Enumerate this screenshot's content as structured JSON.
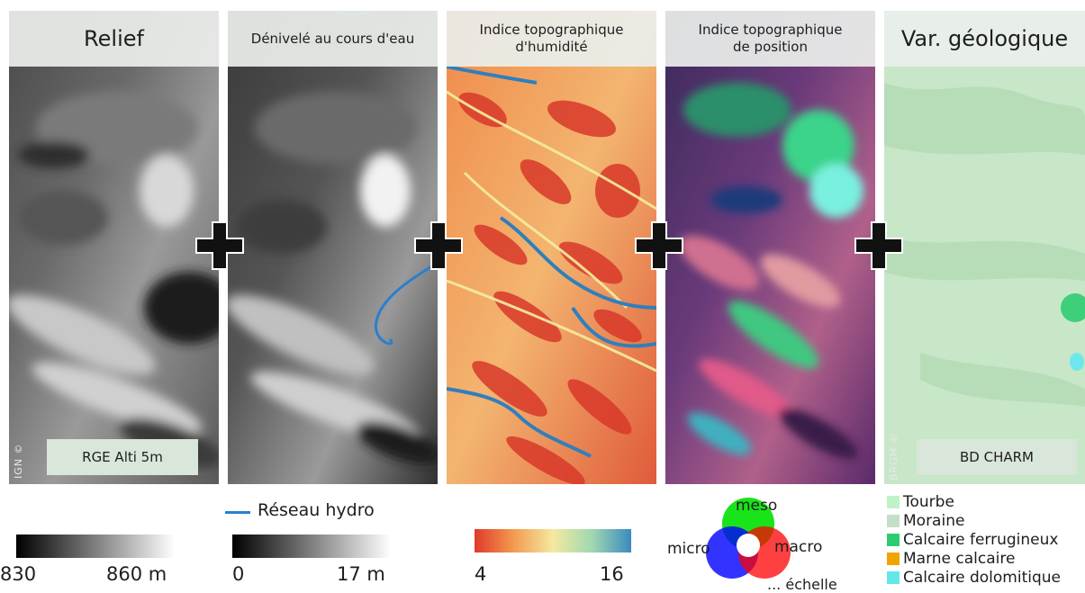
{
  "panels": [
    {
      "title": "Relief",
      "tag": "RGE Alti 5m",
      "credit": "IGN ©"
    },
    {
      "title": "Dénivelé au cours d'eau"
    },
    {
      "title_line1": "Indice topographique",
      "title_line2": "d'humidité"
    },
    {
      "title_line1": "Indice topographique",
      "title_line2": "de position"
    },
    {
      "title": "Var. géologique",
      "tag": "BD CHARM",
      "credit": "BRGM ©"
    }
  ],
  "legends": {
    "relief": {
      "min": "830",
      "max": "860 m"
    },
    "denivele": {
      "line_label": "Réseau hydro",
      "min": "0",
      "max": "17 m",
      "line_color": "#2a7fd0"
    },
    "humidite": {
      "min": "4",
      "max": "16"
    },
    "position": {
      "meso": "meso",
      "micro": "micro",
      "macro": "macro",
      "echelle": "... échelle"
    },
    "geologie": [
      {
        "label": "Tourbe",
        "color": "#bff2c6"
      },
      {
        "label": "Moraine",
        "color": "#c5dec7"
      },
      {
        "label": "Calcaire ferrugineux",
        "color": "#2ecc71"
      },
      {
        "label": "Marne calcaire",
        "color": "#f0a400"
      },
      {
        "label": "Calcaire dolomitique",
        "color": "#63e8e8"
      }
    ]
  }
}
